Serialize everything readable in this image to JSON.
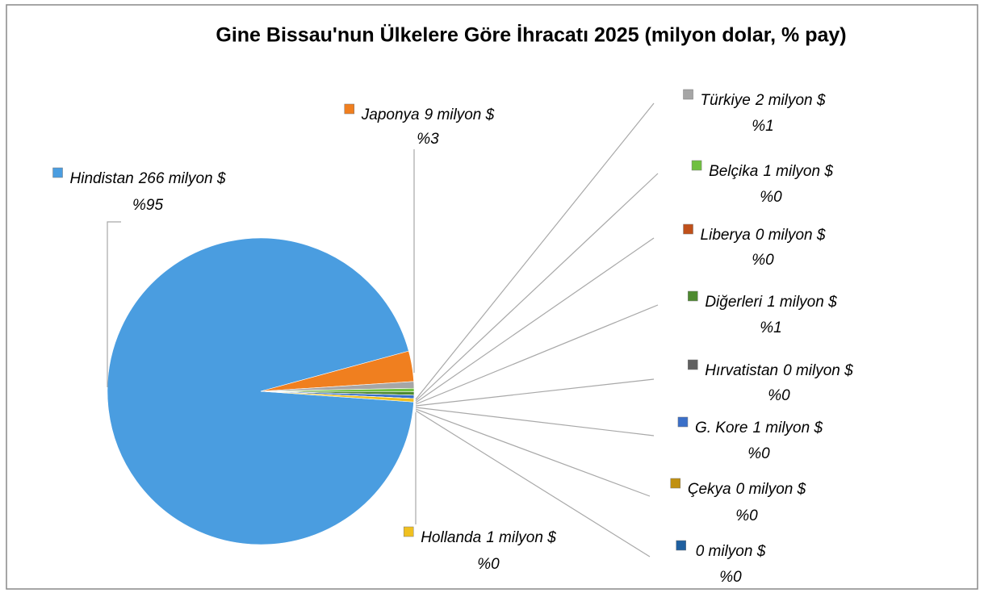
{
  "chart_data": {
    "type": "pie",
    "title": "Gine Bissau'nun Ülkelere Göre İhracatı 2025 (milyon dolar, % pay)",
    "categories": [
      "Hindistan",
      "Japonya",
      "Türkiye",
      "Belçika",
      "Liberya",
      "Diğerleri",
      "Hırvatistan",
      "G. Kore",
      "Çekya",
      null,
      "Hollanda"
    ],
    "values": [
      266,
      9,
      2,
      1,
      0,
      1,
      0,
      1,
      0,
      0,
      1
    ],
    "value_labels": [
      "266 milyon $",
      "9 milyon $",
      "2 milyon $",
      "1 milyon $",
      "0 milyon $",
      "1 milyon $",
      "0 milyon $",
      "1 milyon $",
      "0 milyon $",
      "0 milyon $",
      "1 milyon $"
    ],
    "percents": [
      95,
      3,
      1,
      0,
      0,
      1,
      0,
      0,
      0,
      0,
      0
    ],
    "percent_labels": [
      "%95",
      "%3",
      "%1",
      "%0",
      "%0",
      "%1",
      "%0",
      "%0",
      "%0",
      "%0",
      "%0"
    ],
    "colors": [
      "#4a9de0",
      "#f07f1f",
      "#a6a6a6",
      "#70c040",
      "#c0501a",
      "#4e8a30",
      "#606060",
      "#3a6fc8",
      "#c09010",
      "#1f5f9f",
      "#f0c020"
    ]
  }
}
